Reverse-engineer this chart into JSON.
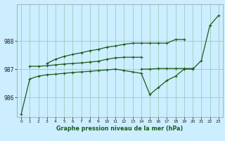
{
  "xlabel": "Graphe pression niveau de la mer (hPa)",
  "bg_color": "#cceeff",
  "grid_color": "#99ccbb",
  "line_color": "#1a5c1a",
  "hours": [
    0,
    1,
    2,
    3,
    4,
    5,
    6,
    7,
    8,
    9,
    10,
    11,
    12,
    13,
    14,
    15,
    16,
    17,
    18,
    19,
    20,
    21,
    22,
    23
  ],
  "main": [
    985.4,
    986.65,
    986.75,
    986.8,
    986.82,
    986.85,
    986.88,
    986.9,
    986.92,
    986.95,
    986.97,
    987.0,
    986.95,
    986.9,
    986.85,
    986.1,
    986.35,
    986.6,
    986.75,
    987.0,
    987.0,
    987.3,
    988.55,
    988.9
  ],
  "upper_flat": [
    null,
    987.1,
    987.1,
    987.12,
    987.15,
    987.18,
    987.2,
    987.22,
    987.25,
    987.28,
    987.35,
    987.4,
    987.42,
    987.42,
    987.42,
    null,
    null,
    null,
    null,
    null,
    null,
    null,
    null,
    null
  ],
  "top_rising": [
    null,
    null,
    null,
    987.2,
    987.35,
    987.45,
    987.52,
    987.58,
    987.65,
    987.7,
    987.78,
    987.82,
    987.88,
    987.92,
    987.92,
    987.92,
    987.92,
    987.92,
    988.05,
    988.05,
    null,
    null,
    null,
    null
  ],
  "flat_mid": [
    null,
    null,
    null,
    null,
    null,
    null,
    null,
    null,
    null,
    null,
    null,
    null,
    null,
    null,
    987.0,
    987.0,
    987.02,
    987.02,
    987.02,
    987.02,
    987.02,
    null,
    null,
    null
  ],
  "ylim": [
    985.3,
    989.3
  ],
  "yticks": [
    986,
    987,
    988
  ],
  "xticks": [
    0,
    1,
    2,
    3,
    4,
    5,
    6,
    7,
    8,
    9,
    10,
    11,
    12,
    13,
    14,
    15,
    16,
    17,
    18,
    19,
    20,
    21,
    22,
    23
  ]
}
